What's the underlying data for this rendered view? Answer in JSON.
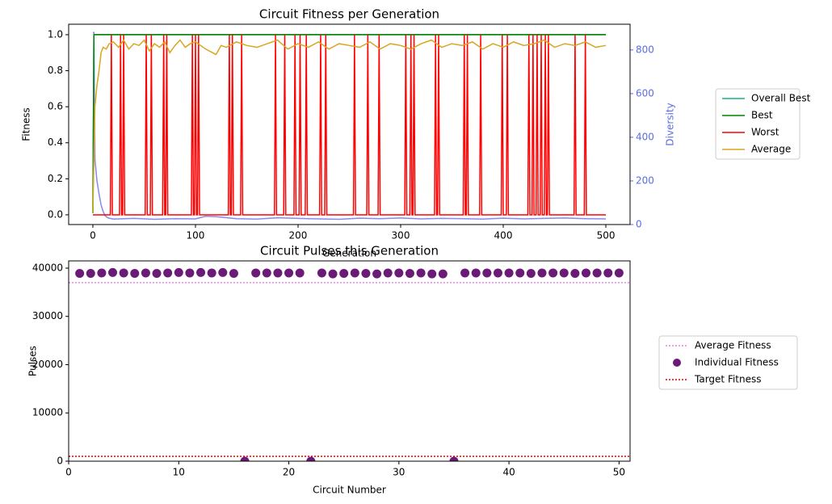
{
  "chart_data": [
    {
      "type": "line",
      "title": "Circuit Fitness per Generation",
      "xlabel": "Generation",
      "ylabel": "Fitness",
      "y2label": "Diversity",
      "y2color": "#5a6ee0",
      "xlim": [
        -23.6,
        523.6
      ],
      "xticks": [
        0,
        100,
        200,
        300,
        400,
        500
      ],
      "ylim": [
        -0.054,
        1.058
      ],
      "yticks": [
        {
          "value": 0,
          "label": "0.0"
        },
        0.2,
        0.4,
        0.6,
        0.8,
        {
          "value": 1,
          "label": "1.0"
        }
      ],
      "y2lim": [
        0,
        918
      ],
      "y2ticks": [
        0,
        200,
        400,
        600,
        800
      ],
      "legend": "right-outside",
      "series": [
        {
          "name": "Diversity",
          "color": "#6a6ae8",
          "axis": "y2",
          "in_legend": false,
          "x": [
            0,
            1,
            2,
            4,
            6,
            8,
            10,
            12,
            15,
            20,
            40,
            60,
            80,
            100,
            110,
            120,
            140,
            160,
            180,
            200,
            220,
            240,
            260,
            280,
            300,
            320,
            340,
            360,
            380,
            400,
            420,
            440,
            460,
            480,
            500
          ],
          "values": [
            880,
            880,
            300,
            200,
            140,
            90,
            60,
            40,
            30,
            25,
            28,
            24,
            27,
            26,
            38,
            36,
            27,
            25,
            31,
            28,
            26,
            24,
            29,
            27,
            30,
            26,
            28,
            27,
            25,
            29,
            26,
            28,
            30,
            27,
            26
          ]
        },
        {
          "name": "Overall Best",
          "color": "#1aaf8b",
          "x": [
            0,
            1,
            500
          ],
          "values": [
            0.01,
            1,
            1
          ]
        },
        {
          "name": "Best",
          "color": "#008000",
          "x": [
            0,
            1,
            500
          ],
          "values": [
            0.01,
            1,
            1
          ]
        },
        {
          "name": "Worst",
          "color": "#ff0000",
          "x": [
            0,
            17,
            18,
            19,
            26,
            27,
            28,
            29,
            30,
            31,
            51,
            52,
            53,
            56,
            57,
            58,
            68,
            69,
            70,
            71,
            72,
            73,
            96,
            97,
            98,
            99,
            100,
            101,
            102,
            103,
            104,
            132,
            133,
            134,
            135,
            136,
            137,
            144,
            145,
            146,
            177,
            178,
            179,
            186,
            187,
            188,
            196,
            197,
            198,
            201,
            202,
            203,
            207,
            208,
            209,
            221,
            222,
            223,
            226,
            227,
            228,
            254,
            255,
            256,
            267,
            268,
            269,
            278,
            279,
            280,
            304,
            305,
            306,
            309,
            310,
            311,
            312,
            313,
            314,
            333,
            334,
            335,
            336,
            337,
            338,
            361,
            362,
            363,
            364,
            365,
            366,
            377,
            378,
            379,
            398,
            399,
            400,
            403,
            404,
            405,
            424,
            425,
            426,
            428,
            429,
            430,
            432,
            433,
            434,
            436,
            437,
            438,
            440,
            441,
            442,
            443,
            444,
            445,
            469,
            470,
            471,
            479,
            480,
            481,
            500
          ],
          "values": [
            0,
            0,
            1,
            0,
            0,
            1,
            0,
            0,
            1,
            0,
            0,
            1,
            0,
            0,
            1,
            0,
            0,
            1,
            0,
            0,
            1,
            0,
            0,
            1,
            0,
            0,
            1,
            0,
            0,
            1,
            0,
            0,
            1,
            0,
            0,
            1,
            0,
            0,
            1,
            0,
            0,
            1,
            0,
            0,
            1,
            0,
            0,
            1,
            0,
            0,
            1,
            0,
            0,
            1,
            0,
            0,
            1,
            0,
            0,
            1,
            0,
            0,
            1,
            0,
            0,
            1,
            0,
            0,
            1,
            0,
            0,
            1,
            0,
            0,
            1,
            0,
            0,
            1,
            0,
            0,
            1,
            0,
            0,
            1,
            0,
            0,
            1,
            0,
            0,
            1,
            0,
            0,
            1,
            0,
            0,
            1,
            0,
            0,
            1,
            0,
            0,
            1,
            0,
            0,
            1,
            0,
            0,
            1,
            0,
            0,
            1,
            0,
            0,
            1,
            0,
            0,
            1,
            0,
            0,
            1,
            0,
            0,
            1,
            0,
            0
          ]
        },
        {
          "name": "Average",
          "color": "#daa520",
          "x": [
            0,
            2,
            4,
            6,
            8,
            10,
            13,
            16,
            20,
            25,
            30,
            35,
            40,
            45,
            50,
            55,
            60,
            65,
            70,
            75,
            80,
            85,
            90,
            95,
            100,
            110,
            120,
            125,
            130,
            140,
            150,
            160,
            170,
            180,
            190,
            200,
            210,
            220,
            230,
            240,
            250,
            260,
            270,
            280,
            290,
            300,
            310,
            320,
            330,
            340,
            350,
            360,
            370,
            380,
            390,
            400,
            410,
            420,
            430,
            440,
            450,
            460,
            470,
            480,
            490,
            500
          ],
          "values": [
            0.01,
            0.6,
            0.72,
            0.8,
            0.9,
            0.93,
            0.92,
            0.95,
            0.96,
            0.93,
            0.97,
            0.92,
            0.95,
            0.94,
            0.97,
            0.91,
            0.95,
            0.93,
            0.96,
            0.9,
            0.94,
            0.97,
            0.93,
            0.95,
            0.96,
            0.92,
            0.89,
            0.94,
            0.93,
            0.96,
            0.94,
            0.93,
            0.95,
            0.97,
            0.92,
            0.95,
            0.93,
            0.96,
            0.92,
            0.95,
            0.94,
            0.93,
            0.96,
            0.92,
            0.95,
            0.94,
            0.92,
            0.95,
            0.97,
            0.93,
            0.95,
            0.94,
            0.96,
            0.92,
            0.95,
            0.93,
            0.96,
            0.94,
            0.95,
            0.97,
            0.93,
            0.95,
            0.94,
            0.96,
            0.93,
            0.94
          ]
        }
      ]
    },
    {
      "type": "scatter",
      "title": "Circuit Pulses this Generation",
      "xlabel": "Circuit Number",
      "ylabel": "Pulses",
      "xlim": [
        0,
        51
      ],
      "xticks": [
        0,
        10,
        20,
        30,
        40,
        50
      ],
      "ylim": [
        0,
        41500
      ],
      "yticks": [
        0,
        10000,
        20000,
        30000,
        40000
      ],
      "legend": "right-outside",
      "lines": [
        {
          "name": "Average Fitness",
          "value": 37000,
          "color": "#ee82ee",
          "style": "dotted"
        },
        {
          "name": "Target Fitness",
          "value": 1000,
          "color": "#dd0000",
          "style": "dotted"
        }
      ],
      "series": [
        {
          "name": "Individual Fitness",
          "color": "#6b1a78",
          "x": [
            1,
            2,
            3,
            4,
            5,
            6,
            7,
            8,
            9,
            10,
            11,
            12,
            13,
            14,
            15,
            16,
            17,
            18,
            19,
            20,
            21,
            22,
            23,
            24,
            25,
            26,
            27,
            28,
            29,
            30,
            31,
            32,
            33,
            34,
            35,
            36,
            37,
            38,
            39,
            40,
            41,
            42,
            43,
            44,
            45,
            46,
            47,
            48,
            49,
            50
          ],
          "values": [
            38900,
            38900,
            39000,
            39100,
            39000,
            38900,
            39000,
            38900,
            39000,
            39100,
            39000,
            39100,
            39000,
            39100,
            38900,
            0,
            39000,
            39000,
            39000,
            39000,
            39000,
            0,
            39000,
            38800,
            38900,
            39000,
            38900,
            38800,
            39000,
            39000,
            38900,
            39000,
            38800,
            38800,
            0,
            39000,
            39000,
            39000,
            39000,
            39000,
            39000,
            38900,
            39000,
            39000,
            39000,
            38900,
            39000,
            39000,
            39000,
            39000
          ]
        }
      ]
    }
  ]
}
